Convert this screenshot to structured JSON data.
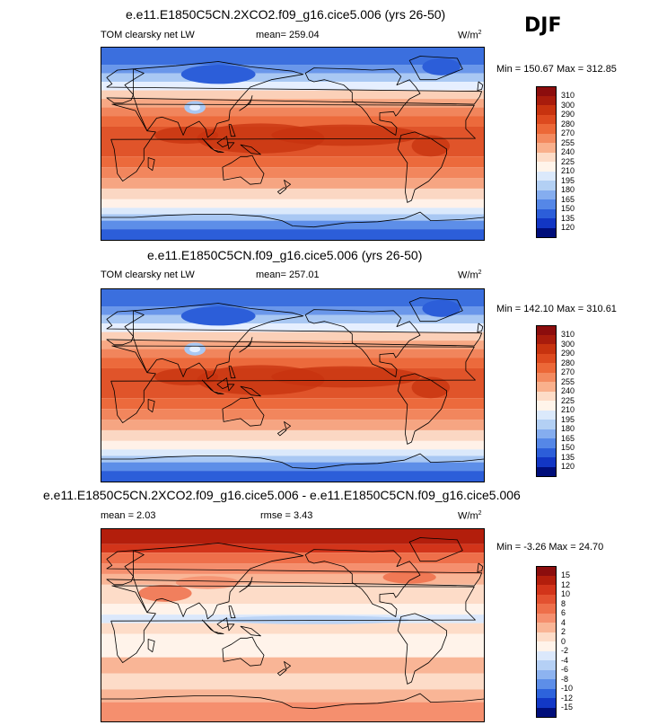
{
  "season": "DJF",
  "panels": [
    {
      "title": "e.e11.E1850C5CN.2XCO2.f09_g16.cice5.006 (yrs 26-50)",
      "variable": "TOM clearsky net LW",
      "stat1": "mean= 259.04",
      "stat2": "",
      "units": "W/m",
      "units_exp": "2",
      "minmax": "Min = 150.67 Max = 312.85",
      "colorbar": {
        "labels": [
          "310",
          "300",
          "290",
          "280",
          "270",
          "255",
          "240",
          "225",
          "210",
          "195",
          "180",
          "165",
          "150",
          "135",
          "120"
        ],
        "colors": [
          "#8c0d0d",
          "#a81c0c",
          "#c7330f",
          "#dd4a1f",
          "#ec6838",
          "#f38a5f",
          "#f9b08c",
          "#fddcc7",
          "#fff4ea",
          "#dbe9fb",
          "#b3d0f4",
          "#85adef",
          "#5587e7",
          "#2c5ed9",
          "#1236c4",
          "#000e7a"
        ]
      },
      "map_type": "absolute"
    },
    {
      "title": "e.e11.E1850C5CN.f09_g16.cice5.006 (yrs 26-50)",
      "variable": "TOM clearsky net LW",
      "stat1": "mean= 257.01",
      "stat2": "",
      "units": "W/m",
      "units_exp": "2",
      "minmax": "Min = 142.10 Max = 310.61",
      "colorbar": {
        "labels": [
          "310",
          "300",
          "290",
          "280",
          "270",
          "255",
          "240",
          "225",
          "210",
          "195",
          "180",
          "165",
          "150",
          "135",
          "120"
        ],
        "colors": [
          "#8c0d0d",
          "#a81c0c",
          "#c7330f",
          "#dd4a1f",
          "#ec6838",
          "#f38a5f",
          "#f9b08c",
          "#fddcc7",
          "#fff4ea",
          "#dbe9fb",
          "#b3d0f4",
          "#85adef",
          "#5587e7",
          "#2c5ed9",
          "#1236c4",
          "#000e7a"
        ]
      },
      "map_type": "absolute"
    },
    {
      "title": "e.e11.E1850C5CN.2XCO2.f09_g16.cice5.006 - e.e11.E1850C5CN.f09_g16.cice5.006",
      "variable": "",
      "stat1": "mean =   2.03",
      "stat2": "rmse =   3.43",
      "units": "W/m",
      "units_exp": "2",
      "minmax": "Min =  -3.26 Max =  24.70",
      "colorbar": {
        "labels": [
          "15",
          "12",
          "10",
          "8",
          "6",
          "4",
          "2",
          "0",
          "-2",
          "-4",
          "-6",
          "-8",
          "-10",
          "-12",
          "-15"
        ],
        "colors": [
          "#8c0d0d",
          "#b31e0c",
          "#d2341a",
          "#e35130",
          "#ee6f4a",
          "#f58f6e",
          "#f9b596",
          "#fddcc8",
          "#fff3ea",
          "#dbe8fb",
          "#b5d0f5",
          "#8db3f0",
          "#5d8ee8",
          "#2d63dc",
          "#1238c6",
          "#000e7a"
        ]
      },
      "map_type": "difference"
    }
  ]
}
